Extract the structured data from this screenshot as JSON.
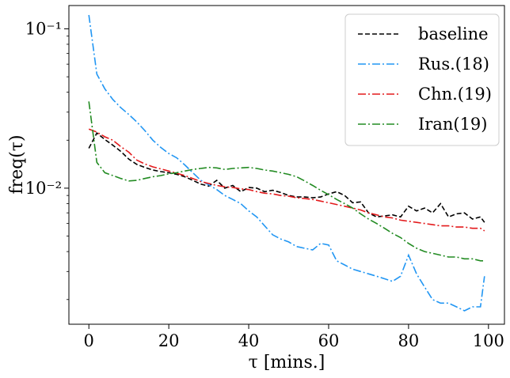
{
  "chart_data": {
    "type": "line",
    "title": "",
    "xlabel": "τ [mins.]",
    "ylabel": "freq(τ)",
    "xlim": [
      -5,
      104
    ],
    "ylim": [
      0.0014,
      0.14
    ],
    "yscale": "log",
    "grid": false,
    "legend_position": "top-right",
    "x_ticks": [
      0,
      20,
      40,
      60,
      80,
      100
    ],
    "x_tick_labels": [
      "0",
      "20",
      "40",
      "60",
      "80",
      "100"
    ],
    "y_ticks": [
      0.01,
      0.1
    ],
    "y_tick_labels": [
      "10⁻²",
      "10⁻¹"
    ],
    "x": [
      0,
      2,
      4,
      6,
      8,
      10,
      12,
      14,
      16,
      18,
      20,
      22,
      24,
      26,
      28,
      30,
      32,
      34,
      36,
      38,
      40,
      42,
      44,
      46,
      48,
      50,
      52,
      54,
      56,
      58,
      60,
      62,
      64,
      66,
      68,
      70,
      72,
      74,
      76,
      78,
      80,
      82,
      84,
      86,
      88,
      90,
      92,
      94,
      96,
      98,
      99
    ],
    "series": [
      {
        "name": "baseline",
        "color": "#000000",
        "dash": "6,3",
        "values": [
          0.0178,
          0.0222,
          0.0202,
          0.0186,
          0.017,
          0.0152,
          0.0141,
          0.0135,
          0.013,
          0.0127,
          0.0125,
          0.0122,
          0.0118,
          0.0112,
          0.0106,
          0.0103,
          0.0112,
          0.01,
          0.0104,
          0.0095,
          0.0101,
          0.01,
          0.0095,
          0.0097,
          0.0094,
          0.009,
          0.0088,
          0.0088,
          0.0087,
          0.0088,
          0.0092,
          0.0095,
          0.009,
          0.0081,
          0.0082,
          0.007,
          0.0066,
          0.0067,
          0.0068,
          0.0066,
          0.0077,
          0.0072,
          0.0075,
          0.007,
          0.008,
          0.0066,
          0.0069,
          0.007,
          0.0064,
          0.0066,
          0.0061
        ]
      },
      {
        "name": "Rus.(18)",
        "color": "#2196f3",
        "dash": "10,3,2,3",
        "values": [
          0.122,
          0.052,
          0.042,
          0.036,
          0.032,
          0.029,
          0.026,
          0.023,
          0.02,
          0.018,
          0.0165,
          0.0155,
          0.014,
          0.0125,
          0.0112,
          0.0105,
          0.0098,
          0.009,
          0.0085,
          0.008,
          0.0072,
          0.0066,
          0.0058,
          0.0051,
          0.0048,
          0.0046,
          0.0043,
          0.0042,
          0.0041,
          0.0045,
          0.0044,
          0.0035,
          0.0033,
          0.0031,
          0.003,
          0.0029,
          0.0028,
          0.0027,
          0.0026,
          0.0028,
          0.0038,
          0.0029,
          0.0024,
          0.002,
          0.0019,
          0.0019,
          0.0018,
          0.0017,
          0.0018,
          0.0018,
          0.0028
        ]
      },
      {
        "name": "Chn.(19)",
        "color": "#e31a1c",
        "dash": "10,3,2,3",
        "values": [
          0.0235,
          0.0225,
          0.021,
          0.02,
          0.0182,
          0.0168,
          0.015,
          0.0142,
          0.0136,
          0.0132,
          0.0128,
          0.0124,
          0.012,
          0.0115,
          0.011,
          0.0107,
          0.0104,
          0.0102,
          0.0101,
          0.0099,
          0.0098,
          0.0095,
          0.0093,
          0.0092,
          0.009,
          0.0089,
          0.0087,
          0.0086,
          0.0085,
          0.0083,
          0.0081,
          0.0079,
          0.0077,
          0.0075,
          0.0073,
          0.007,
          0.0068,
          0.0066,
          0.0065,
          0.0063,
          0.0062,
          0.0061,
          0.006,
          0.0059,
          0.0058,
          0.0058,
          0.0057,
          0.0057,
          0.0056,
          0.0056,
          0.0054
        ]
      },
      {
        "name": "Iran(19)",
        "color": "#228b22",
        "dash": "10,3,2,3",
        "values": [
          0.035,
          0.0145,
          0.0125,
          0.012,
          0.0115,
          0.0111,
          0.0112,
          0.0115,
          0.0118,
          0.012,
          0.0123,
          0.0125,
          0.0128,
          0.0131,
          0.0133,
          0.0135,
          0.0134,
          0.0131,
          0.0133,
          0.0134,
          0.0135,
          0.0133,
          0.013,
          0.0128,
          0.0125,
          0.0122,
          0.0118,
          0.0111,
          0.0104,
          0.0097,
          0.0091,
          0.0085,
          0.008,
          0.0075,
          0.0069,
          0.0064,
          0.006,
          0.0056,
          0.0052,
          0.0049,
          0.0045,
          0.0042,
          0.004,
          0.0039,
          0.0038,
          0.0037,
          0.0037,
          0.0036,
          0.0036,
          0.0035,
          0.0035
        ]
      }
    ]
  }
}
